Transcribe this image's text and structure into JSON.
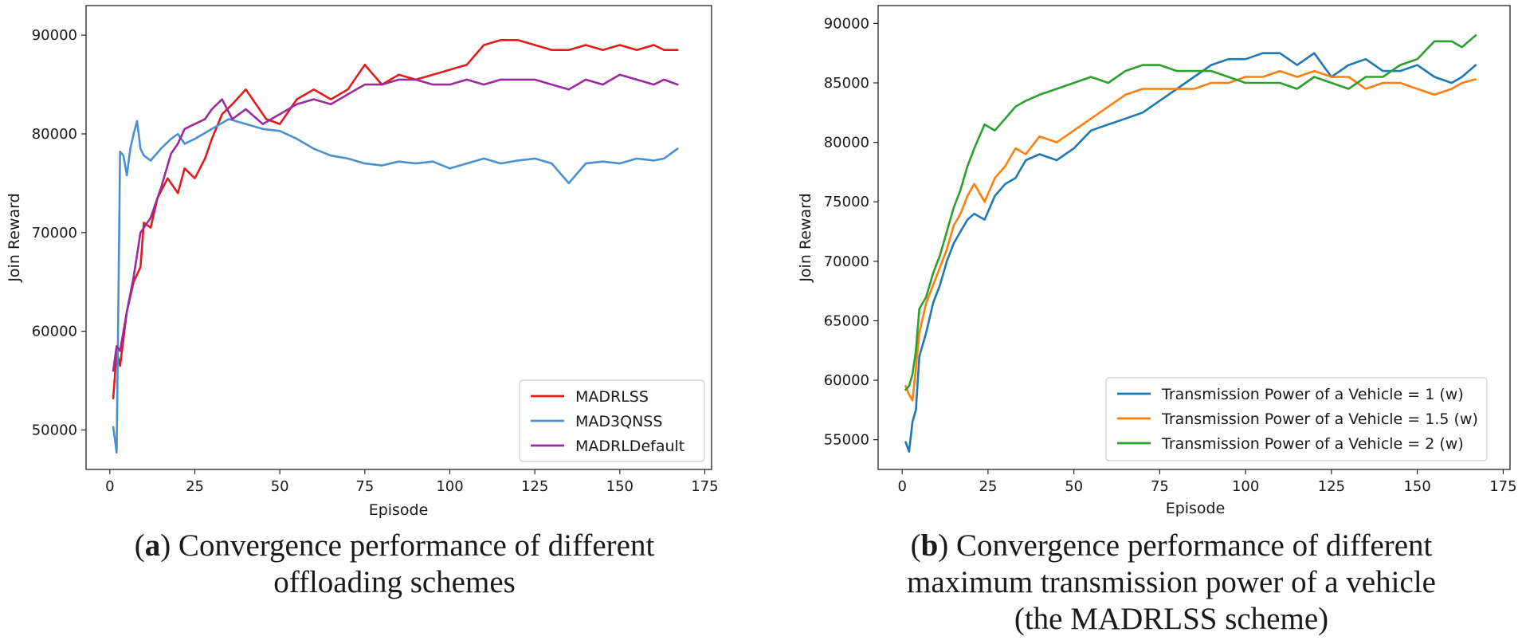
{
  "chart_data": [
    {
      "id": "a",
      "type": "line",
      "title": "",
      "xlabel": "Episode",
      "ylabel": "Join Reward",
      "xlim": [
        -7,
        177
      ],
      "ylim": [
        46000,
        93000
      ],
      "xticks": [
        0,
        25,
        50,
        75,
        100,
        125,
        150,
        175
      ],
      "yticks": [
        50000,
        60000,
        70000,
        80000,
        90000
      ],
      "legend_position": "lower-right",
      "series": [
        {
          "name": "MADRLSS",
          "color": "#e31a1c",
          "x": [
            1,
            2,
            3,
            5,
            7,
            9,
            10,
            12,
            14,
            17,
            20,
            22,
            25,
            28,
            30,
            33,
            36,
            40,
            43,
            46,
            50,
            55,
            60,
            65,
            70,
            75,
            80,
            85,
            90,
            95,
            100,
            105,
            110,
            115,
            120,
            125,
            130,
            135,
            140,
            145,
            150,
            155,
            160,
            163,
            167
          ],
          "y": [
            53200,
            58000,
            56500,
            62000,
            65000,
            66500,
            71000,
            70500,
            73500,
            75500,
            74000,
            76500,
            75500,
            77500,
            79500,
            82000,
            83000,
            84500,
            83000,
            81500,
            81000,
            83500,
            84500,
            83500,
            84500,
            87000,
            85000,
            86000,
            85500,
            86000,
            86500,
            87000,
            89000,
            89500,
            89500,
            89000,
            88500,
            88500,
            89000,
            88500,
            89000,
            88500,
            89000,
            88500,
            88500
          ]
        },
        {
          "name": "MAD3QNSS",
          "color": "#4a90d0",
          "x": [
            1,
            2,
            3,
            4,
            5,
            6,
            7,
            8,
            9,
            10,
            12,
            15,
            18,
            20,
            22,
            25,
            30,
            35,
            40,
            45,
            50,
            55,
            60,
            65,
            70,
            75,
            80,
            85,
            90,
            95,
            100,
            105,
            110,
            115,
            120,
            125,
            130,
            135,
            140,
            145,
            150,
            155,
            160,
            163,
            167
          ],
          "y": [
            50300,
            47700,
            78200,
            77800,
            75800,
            78500,
            80000,
            81300,
            78500,
            77800,
            77300,
            78500,
            79500,
            80000,
            79000,
            79500,
            80500,
            81500,
            81000,
            80500,
            80300,
            79500,
            78500,
            77800,
            77500,
            77000,
            76800,
            77200,
            77000,
            77200,
            76500,
            77000,
            77500,
            77000,
            77300,
            77500,
            77000,
            75000,
            77000,
            77200,
            77000,
            77500,
            77300,
            77500,
            78500
          ]
        },
        {
          "name": "MADRLDefault",
          "color": "#9b2a9b",
          "x": [
            1,
            2,
            3,
            5,
            7,
            9,
            12,
            15,
            18,
            20,
            22,
            25,
            28,
            30,
            33,
            36,
            40,
            45,
            50,
            55,
            60,
            65,
            70,
            75,
            80,
            85,
            90,
            95,
            100,
            105,
            110,
            115,
            120,
            125,
            130,
            135,
            140,
            145,
            150,
            155,
            160,
            163,
            167
          ],
          "y": [
            56000,
            58500,
            58000,
            62000,
            65500,
            70000,
            71500,
            74500,
            78000,
            79000,
            80500,
            81000,
            81500,
            82500,
            83500,
            81500,
            82500,
            81000,
            82000,
            83000,
            83500,
            83000,
            84000,
            85000,
            85000,
            85500,
            85500,
            85000,
            85000,
            85500,
            85000,
            85500,
            85500,
            85500,
            85000,
            84500,
            85500,
            85000,
            86000,
            85500,
            85000,
            85500,
            85000
          ]
        }
      ]
    },
    {
      "id": "b",
      "type": "line",
      "title": "",
      "xlabel": "Episode",
      "ylabel": "Join Reward",
      "xlim": [
        -7,
        177
      ],
      "ylim": [
        52500,
        91500
      ],
      "xticks": [
        0,
        25,
        50,
        75,
        100,
        125,
        150,
        175
      ],
      "yticks": [
        55000,
        60000,
        65000,
        70000,
        75000,
        80000,
        85000,
        90000
      ],
      "legend_position": "lower-right",
      "series": [
        {
          "name": "Transmission Power of a Vehicle = 1 (w)",
          "color": "#1f77b4",
          "x": [
            1,
            2,
            3,
            4,
            5,
            7,
            9,
            11,
            13,
            15,
            17,
            19,
            21,
            24,
            27,
            30,
            33,
            36,
            40,
            45,
            50,
            55,
            60,
            65,
            70,
            75,
            80,
            85,
            90,
            95,
            100,
            105,
            110,
            115,
            120,
            125,
            130,
            135,
            140,
            145,
            150,
            155,
            160,
            163,
            167
          ],
          "y": [
            54800,
            54000,
            56500,
            57500,
            62000,
            64000,
            66500,
            68000,
            70000,
            71500,
            72500,
            73500,
            74000,
            73500,
            75500,
            76500,
            77000,
            78500,
            79000,
            78500,
            79500,
            81000,
            81500,
            82000,
            82500,
            83500,
            84500,
            85500,
            86500,
            87000,
            87000,
            87500,
            87500,
            86500,
            87500,
            85500,
            86500,
            87000,
            86000,
            86000,
            86500,
            85500,
            85000,
            85500,
            86500
          ]
        },
        {
          "name": "Transmission Power of a Vehicle = 1.5 (w)",
          "color": "#ff7f0e",
          "x": [
            1,
            2,
            3,
            4,
            5,
            7,
            9,
            11,
            13,
            15,
            17,
            19,
            21,
            24,
            27,
            30,
            33,
            36,
            40,
            45,
            50,
            55,
            60,
            65,
            70,
            75,
            80,
            85,
            90,
            95,
            100,
            105,
            110,
            115,
            120,
            125,
            130,
            135,
            140,
            145,
            150,
            155,
            160,
            163,
            167
          ],
          "y": [
            59500,
            58800,
            58300,
            61000,
            64000,
            66500,
            68000,
            69500,
            71000,
            73000,
            74000,
            75500,
            76500,
            75000,
            77000,
            78000,
            79500,
            79000,
            80500,
            80000,
            81000,
            82000,
            83000,
            84000,
            84500,
            84500,
            84500,
            84500,
            85000,
            85000,
            85500,
            85500,
            86000,
            85500,
            86000,
            85500,
            85500,
            84500,
            85000,
            85000,
            84500,
            84000,
            84500,
            85000,
            85300
          ]
        },
        {
          "name": "Transmission Power of a Vehicle = 2 (w)",
          "color": "#2ca02c",
          "x": [
            1,
            2,
            3,
            4,
            5,
            7,
            9,
            11,
            13,
            15,
            17,
            19,
            21,
            24,
            27,
            30,
            33,
            36,
            40,
            45,
            50,
            55,
            60,
            65,
            70,
            75,
            80,
            85,
            90,
            95,
            100,
            105,
            110,
            115,
            120,
            125,
            130,
            135,
            140,
            145,
            150,
            155,
            160,
            163,
            167
          ],
          "y": [
            59200,
            59500,
            60500,
            62500,
            66000,
            67000,
            69000,
            70500,
            72500,
            74500,
            76000,
            78000,
            79500,
            81500,
            81000,
            82000,
            83000,
            83500,
            84000,
            84500,
            85000,
            85500,
            85000,
            86000,
            86500,
            86500,
            86000,
            86000,
            86000,
            85500,
            85000,
            85000,
            85000,
            84500,
            85500,
            85000,
            84500,
            85500,
            85500,
            86500,
            87000,
            88500,
            88500,
            88000,
            89000
          ]
        }
      ]
    }
  ],
  "captions": {
    "a": {
      "letter": "a",
      "line1": ") Convergence performance of different",
      "line2": "offloading schemes"
    },
    "b": {
      "letter": "b",
      "line1": ") Convergence performance of different",
      "line2": "maximum transmission power of a vehicle",
      "line3": "(the MADRLSS scheme)"
    }
  },
  "paren_open": "("
}
